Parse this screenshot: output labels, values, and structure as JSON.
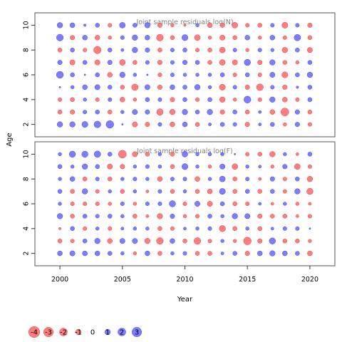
{
  "chart_data": {
    "type": "scatter",
    "subtype": "bubble",
    "xlabel": "Year",
    "ylabel": "Age",
    "x_ticks": [
      2000,
      2005,
      2010,
      2015,
      2020
    ],
    "y_ticks": [
      2,
      4,
      6,
      8,
      10
    ],
    "xlim": [
      1998,
      2022
    ],
    "ylim": [
      1,
      11
    ],
    "years": [
      2000,
      2001,
      2002,
      2003,
      2004,
      2005,
      2006,
      2007,
      2008,
      2009,
      2010,
      2011,
      2012,
      2013,
      2014,
      2015,
      2016,
      2017,
      2018,
      2019,
      2020
    ],
    "ages": [
      2,
      3,
      4,
      5,
      6,
      7,
      8,
      9,
      10
    ],
    "colors": {
      "positive": "#6666ff",
      "negative": "#ff6666"
    },
    "panels": [
      {
        "title": "Joint sample residuals log(N)",
        "residuals": [
          [
            1.0,
            1.0,
            1.2,
            1.5,
            1.9,
            0.1,
            -0.9,
            -0.7,
            0.5,
            -0.8,
            0.8,
            -0.6,
            0.3,
            0.6,
            0.5,
            -0.7,
            0.3,
            0.6,
            -0.4,
            0.7,
            -0.5
          ],
          [
            -0.6,
            -0.7,
            0.5,
            0.6,
            -0.6,
            0.4,
            0.9,
            0.7,
            -1.4,
            -1.0,
            1.0,
            0.6,
            1.0,
            -0.7,
            0.6,
            -0.6,
            0.3,
            -0.8,
            -2.0,
            0.7,
            -0.6
          ],
          [
            -0.5,
            -0.6,
            0.4,
            -0.5,
            0.5,
            -0.8,
            -0.4,
            0.6,
            0.5,
            -0.7,
            0.6,
            -0.5,
            0.6,
            -1.0,
            -0.4,
            1.6,
            -0.5,
            1.0,
            -0.8,
            -0.5,
            0.6
          ],
          [
            0.1,
            0.4,
            0.8,
            0.9,
            0.6,
            -0.6,
            -1.4,
            0.9,
            -0.7,
            0.8,
            0.6,
            1.0,
            0.4,
            -1.2,
            0.5,
            -0.7,
            -1.5,
            0.5,
            -0.7,
            0.2,
            0.6
          ],
          [
            1.6,
            0.6,
            0.1,
            0.6,
            -0.8,
            1.0,
            0.4,
            0.1,
            -0.5,
            0.5,
            0.4,
            0.4,
            0.4,
            0.6,
            -0.5,
            0.6,
            -0.5,
            0.9,
            -1.2,
            0.6,
            1.0
          ],
          [
            0.7,
            -0.9,
            0.6,
            -0.9,
            0.7,
            -1.1,
            -0.6,
            0.5,
            -0.7,
            0.5,
            0.7,
            0.6,
            -0.6,
            -1.1,
            -0.9,
            1.3,
            -0.7,
            1.0,
            -0.6,
            -0.4,
            0.6
          ],
          [
            -0.6,
            0.6,
            -0.5,
            -1.8,
            0.6,
            0.3,
            1.0,
            0.7,
            -0.6,
            0.5,
            0.6,
            -0.5,
            -0.6,
            -1.1,
            0.5,
            -0.4,
            0.5,
            0.4,
            -1.0,
            0.6,
            -0.9
          ],
          [
            1.5,
            -0.7,
            0.8,
            -0.8,
            -0.4,
            0.5,
            1.0,
            0.8,
            -1.5,
            -0.6,
            1.2,
            -1.1,
            -0.4,
            -0.9,
            -0.6,
            0.8,
            -0.4,
            0.8,
            -0.5,
            1.4,
            -0.6
          ],
          [
            1.0,
            0.8,
            0.2,
            0.6,
            -0.5,
            1.1,
            0.6,
            1.0,
            -0.7,
            -0.4,
            -0.2,
            0.4,
            -0.8,
            -0.7,
            -1.1,
            -0.5,
            -0.6,
            0.5,
            -1.2,
            0.5,
            -0.7
          ]
        ]
      },
      {
        "title": "Joint sample residuals log(F)",
        "residuals": [
          [
            0.8,
            0.9,
            0.8,
            0.8,
            0.6,
            0.4,
            -0.4,
            0.8,
            -0.6,
            0.4,
            0.5,
            -0.6,
            -0.6,
            0.3,
            0.6,
            -0.7,
            0.8,
            1.0,
            0.8,
            0.6,
            -0.8
          ],
          [
            -0.6,
            -0.5,
            0.6,
            1.0,
            -0.8,
            0.9,
            0.9,
            -1.0,
            -1.5,
            0.8,
            -0.6,
            -1.5,
            -0.5,
            0.4,
            -0.4,
            -1.9,
            -0.7,
            1.3,
            -0.6,
            -0.6,
            -0.4
          ],
          [
            -0.2,
            0.6,
            -0.5,
            0.4,
            -0.5,
            0.3,
            0.4,
            0.4,
            -0.6,
            -0.5,
            0.3,
            0.4,
            0.5,
            -1.3,
            -0.6,
            0.4,
            -0.6,
            0.3,
            0.5,
            0.5,
            0.1
          ],
          [
            1.0,
            -0.6,
            0.6,
            0.5,
            0.6,
            0.4,
            -0.6,
            -0.3,
            -1.0,
            0.7,
            -0.4,
            -0.5,
            0.6,
            0.4,
            1.0,
            0.9,
            -0.7,
            -0.6,
            -0.6,
            -0.3,
            -0.5
          ],
          [
            0.4,
            -0.5,
            -0.5,
            -0.5,
            -0.4,
            0.5,
            -0.4,
            0.5,
            0.5,
            1.3,
            -0.5,
            0.9,
            -0.9,
            0.6,
            -0.6,
            -0.5,
            0.3,
            -0.3,
            0.4,
            -0.4,
            -0.3
          ],
          [
            0.6,
            -0.6,
            1.0,
            -0.5,
            0.4,
            -0.6,
            0.4,
            -0.3,
            0.5,
            -0.6,
            0.4,
            -0.6,
            -0.8,
            1.2,
            -0.6,
            0.6,
            -0.6,
            0.6,
            -0.5,
            1.0,
            -1.3
          ],
          [
            0.4,
            0.8,
            -0.6,
            0.5,
            -0.6,
            0.4,
            0.5,
            0.4,
            -0.8,
            0.5,
            0.5,
            -0.8,
            0.4,
            1.1,
            -0.6,
            0.5,
            -0.3,
            0.7,
            -0.5,
            0.6,
            -1.0
          ],
          [
            0.6,
            0.4,
            1.0,
            0.6,
            -0.9,
            -0.7,
            0.4,
            0.5,
            0.4,
            -0.6,
            1.2,
            0.4,
            -0.4,
            0.9,
            -1.1,
            0.4,
            0.3,
            -0.4,
            0.7,
            -1.1,
            -0.5
          ],
          [
            0.4,
            1.3,
            1.3,
            1.4,
            0.6,
            -2.0,
            -0.9,
            -0.6,
            0.4,
            -0.6,
            1.1,
            0.4,
            0.4,
            0.4,
            0.1,
            -0.5,
            -0.6,
            -1.0,
            0.4,
            -0.3,
            0.6
          ]
        ]
      }
    ],
    "legend": {
      "values": [
        -4,
        -3,
        -2,
        -1,
        0,
        1,
        2,
        3
      ],
      "labels": [
        "-4",
        "-3",
        "-2",
        "-1",
        "0",
        "1",
        "2",
        "3"
      ]
    }
  }
}
